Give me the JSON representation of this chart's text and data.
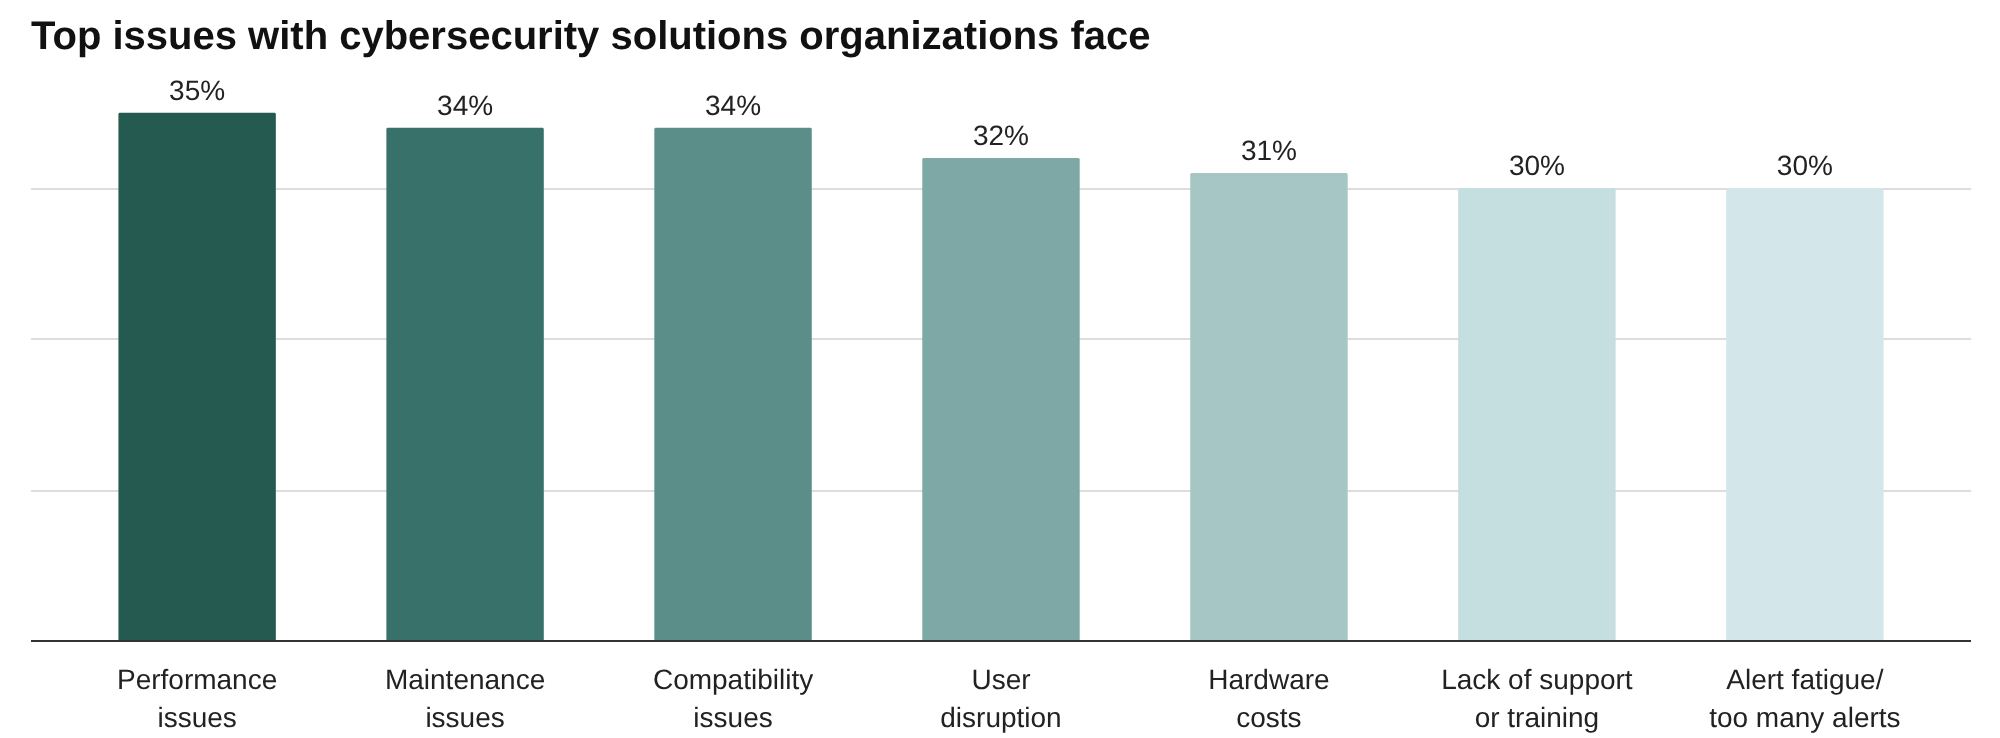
{
  "chart_data": {
    "type": "bar",
    "title": "Top issues with cybersecurity solutions organizations face",
    "categories": [
      "Performance\nissues",
      "Maintenance\nissues",
      "Compatibility\nissues",
      "User\ndisruption",
      "Hardware\ncosts",
      "Lack of support\nor training",
      "Alert fatigue/\ntoo many alerts"
    ],
    "values": [
      35,
      34,
      34,
      32,
      31,
      30,
      30
    ],
    "colors": [
      "#245a4f",
      "#38716a",
      "#5b8e89",
      "#7ea8a5",
      "#a5c6c4",
      "#c5dedf",
      "#d3e6ea"
    ],
    "value_labels": [
      "35%",
      "34%",
      "34%",
      "32%",
      "31%",
      "30%",
      "30%"
    ],
    "grid": "y",
    "tick_labels": "x"
  }
}
